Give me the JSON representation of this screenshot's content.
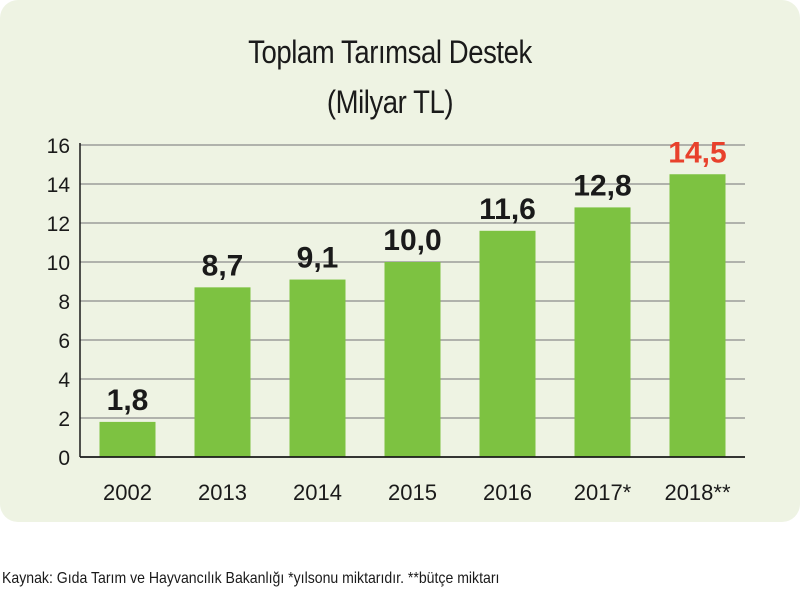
{
  "chart_data": {
    "type": "bar",
    "title": "Toplam Tarımsal Destek",
    "subtitle": "(Milyar TL)",
    "categories": [
      "2002",
      "2013",
      "2014",
      "2015",
      "2016",
      "2017*",
      "2018**"
    ],
    "values": [
      1.8,
      8.7,
      9.1,
      10.0,
      11.6,
      12.8,
      14.5
    ],
    "value_labels": [
      "1,8",
      "8,7",
      "9,1",
      "10,0",
      "11,6",
      "12,8",
      "14,5"
    ],
    "highlight_index": 6,
    "ylim": [
      0,
      16
    ],
    "yticks": [
      0,
      2,
      4,
      6,
      8,
      10,
      12,
      14,
      16
    ],
    "grid": true,
    "xlabel": "",
    "ylabel": "",
    "colors": {
      "bar": "#7dc241",
      "label": "#1a1a1a",
      "highlight_label": "#e8412c",
      "grid": "#8a8a8a",
      "panel": "#eef3e3"
    }
  },
  "footer": {
    "source": "Kaynak: Gıda Tarım ve Hayvancılık Bakanlığı *yılsonu miktarıdır. **bütçe miktarı"
  }
}
